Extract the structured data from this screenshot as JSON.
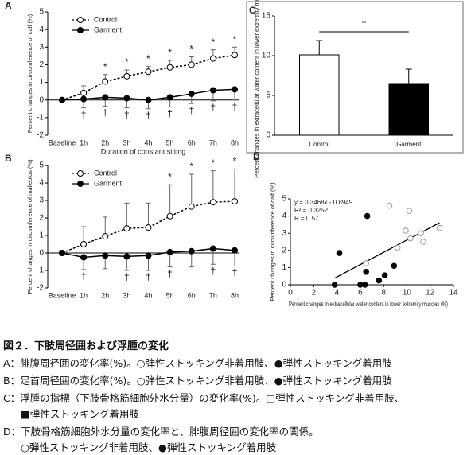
{
  "chart_data": [
    {
      "type": "line",
      "panel": "A",
      "ylabel": "Percent changes in circumference of calf (%)",
      "xlabel": "Duration of constant sitting",
      "categories": [
        "Baseline",
        "1h",
        "2h",
        "3h",
        "4h",
        "5h",
        "6h",
        "7h",
        "8h"
      ],
      "ylim": [
        -2,
        5
      ],
      "yticks": [
        -2,
        -1,
        0,
        1,
        2,
        3,
        4,
        5
      ],
      "series": [
        {
          "name": "Control",
          "color": "#000000",
          "marker": "open",
          "dashed": true,
          "error_direction": "up",
          "values": [
            0,
            0.4,
            1.05,
            1.35,
            1.6,
            1.85,
            2.0,
            2.35,
            2.55
          ],
          "errors": [
            0.1,
            0.4,
            0.4,
            0.35,
            0.3,
            0.4,
            0.45,
            0.5,
            0.45
          ],
          "significance": [
            null,
            null,
            "*",
            "*",
            "*",
            "*",
            "*",
            "*",
            "*"
          ]
        },
        {
          "name": "Garment",
          "color": "#000000",
          "marker": "filled",
          "dashed": false,
          "error_direction": "down",
          "values": [
            0,
            0.05,
            0.15,
            0.1,
            0.0,
            0.15,
            0.35,
            0.55,
            0.6
          ],
          "errors": [
            0.1,
            0.5,
            0.5,
            0.55,
            0.5,
            0.55,
            0.55,
            0.6,
            0.6
          ],
          "significance": [
            null,
            "†",
            "†",
            "†",
            "†",
            "†",
            "†",
            "†",
            "†"
          ]
        }
      ]
    },
    {
      "type": "line",
      "panel": "B",
      "ylabel": "Percent changes in circumference of malleolus (%)",
      "categories": [
        "Baseline",
        "1h",
        "2h",
        "3h",
        "4h",
        "5h",
        "6h",
        "7h",
        "8h"
      ],
      "ylim": [
        -2,
        5
      ],
      "yticks": [
        -2,
        -1,
        0,
        1,
        2,
        3,
        4,
        5
      ],
      "series": [
        {
          "name": "Control",
          "color": "#000000",
          "marker": "open",
          "dashed": true,
          "error_direction": "up",
          "values": [
            0,
            0.5,
            0.95,
            1.4,
            1.45,
            2.1,
            2.65,
            2.9,
            2.95
          ],
          "errors": [
            0.1,
            1.0,
            1.1,
            1.45,
            1.4,
            1.8,
            1.85,
            1.8,
            1.85
          ],
          "significance": [
            null,
            null,
            null,
            null,
            null,
            "*",
            "*",
            "*",
            "*"
          ]
        },
        {
          "name": "Garment",
          "color": "#000000",
          "marker": "filled",
          "dashed": false,
          "error_direction": "down",
          "values": [
            0,
            -0.25,
            -0.15,
            -0.2,
            -0.15,
            0.05,
            0.1,
            0.25,
            0.15
          ],
          "errors": [
            0.1,
            0.7,
            0.75,
            0.8,
            0.85,
            0.85,
            0.9,
            0.9,
            0.9
          ],
          "significance": [
            null,
            "†",
            null,
            "†",
            "†",
            "†",
            null,
            "†",
            "†"
          ]
        }
      ]
    },
    {
      "type": "bar",
      "panel": "C",
      "ylabel": "Percent changes in extracellular water content in lower extremity muscles (%)",
      "categories": [
        "Control",
        "Garment"
      ],
      "values": [
        10.1,
        6.5
      ],
      "errors": [
        1.8,
        1.8
      ],
      "colors": [
        "#ffffff",
        "#000000"
      ],
      "significance": "†",
      "ylim": [
        0,
        15
      ],
      "yticks": [
        0,
        5,
        10,
        15
      ]
    },
    {
      "type": "scatter",
      "panel": "D",
      "ylabel": "Percent changes in circumference of calf (%)",
      "xlabel": "Percent changes in extracellular water content in lower extremity muscles (%)",
      "xlim": [
        0,
        14
      ],
      "xticks": [
        0,
        2,
        4,
        6,
        8,
        10,
        12,
        14
      ],
      "ylim": [
        0,
        5
      ],
      "yticks": [
        0,
        1,
        2,
        3,
        4,
        5
      ],
      "annotations": [
        "y = 0.3468x - 0.8949",
        "R² = 0.3252",
        "R = 0.57"
      ],
      "series": [
        {
          "marker": "open",
          "x": [
            6.5,
            8.5,
            10.2,
            9.9,
            10.3,
            11.2,
            11.4,
            12.8,
            9.2
          ],
          "y": [
            1.25,
            4.6,
            4.3,
            3.15,
            2.7,
            3.0,
            2.5,
            3.3,
            2.15
          ]
        },
        {
          "marker": "filled",
          "x": [
            3.8,
            4.2,
            6.0,
            6.4,
            6.6,
            6.5,
            7.6,
            8.1,
            8.9
          ],
          "y": [
            0.0,
            1.85,
            0.0,
            0.0,
            4.0,
            0.75,
            0.25,
            0.55,
            1.1
          ]
        }
      ]
    }
  ],
  "caption": {
    "title": "図２．下肢周径囲および浮腫の変化",
    "lines": [
      "A：腓腹周径囲の変化率(%)。○弾性ストッキング非着用肢、●弾性ストッキング着用肢",
      "B：足首周径囲の変化率(%)。○弾性ストッキング非着用肢、●弾性ストッキング着用肢",
      "C：浮腫の指標（下肢骨格筋細胞外水分量）の変化率(%)。□弾性ストッキング非着用肢、",
      "■弾性ストッキング着用肢",
      "D：下肢骨格筋細胞外水分量の変化率と、腓腹周径囲の変化率の関係。",
      "○弾性ストッキング非着用肢、●弾性ストッキング着用肢"
    ]
  }
}
